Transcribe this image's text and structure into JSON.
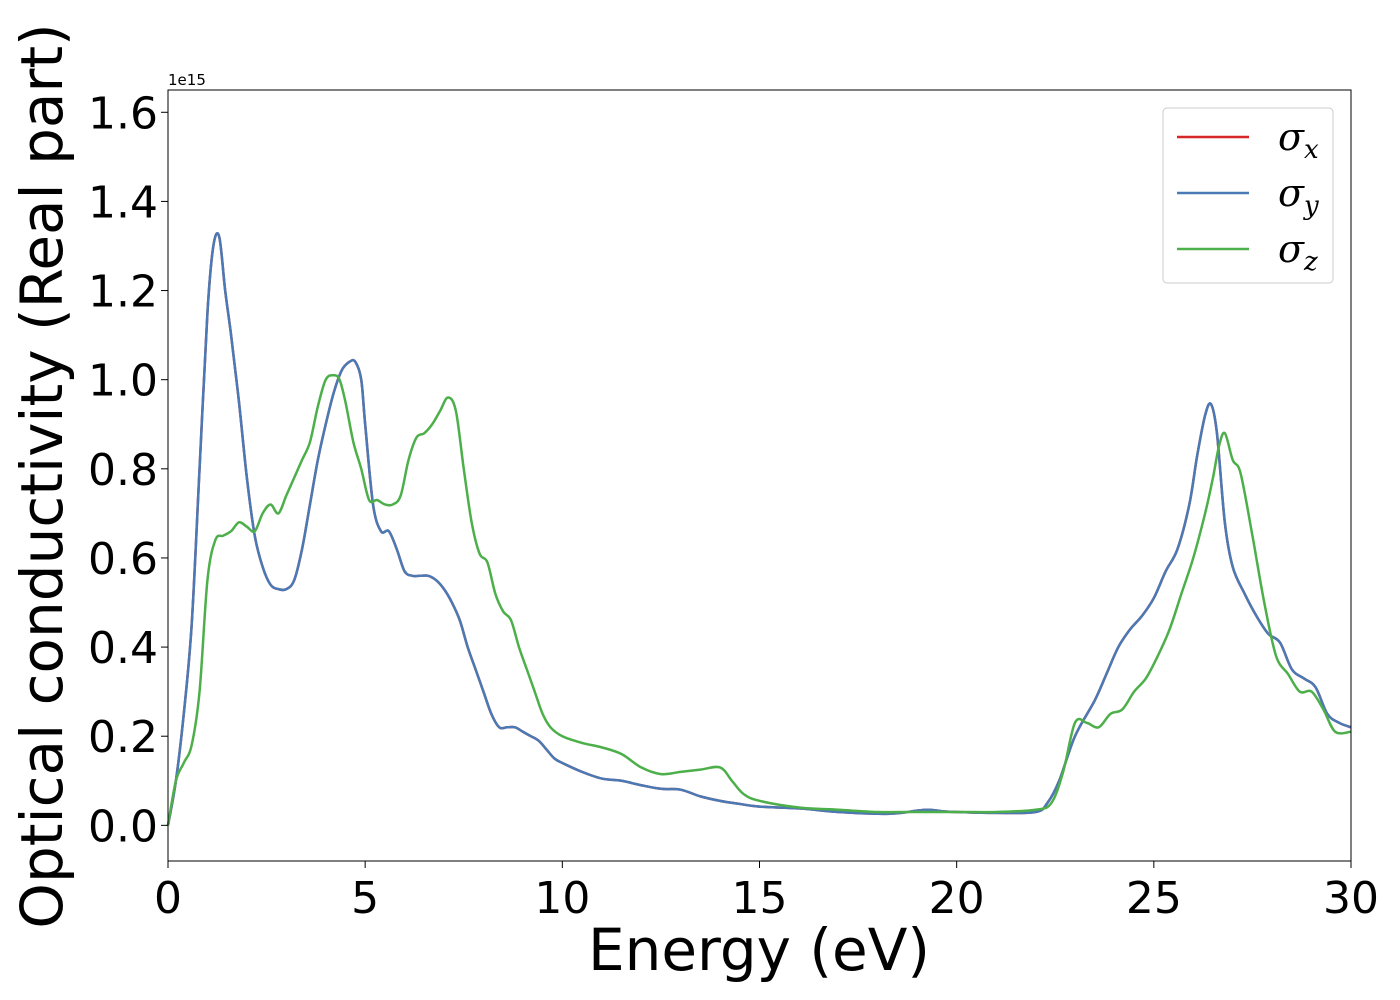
{
  "chart_data": {
    "type": "line",
    "title": "",
    "xlabel": "Energy (eV)",
    "ylabel": "Optical conductivity (Real part)",
    "y_offset_label": "1e15",
    "xlim": [
      0,
      30
    ],
    "ylim": [
      -0.08,
      1.65
    ],
    "xticks": [
      0,
      5,
      10,
      15,
      20,
      25,
      30
    ],
    "xtick_labels": [
      "0",
      "5",
      "10",
      "15",
      "20",
      "25",
      "30"
    ],
    "yticks": [
      0.0,
      0.2,
      0.4,
      0.6,
      0.8,
      1.0,
      1.2,
      1.4,
      1.6
    ],
    "ytick_labels": [
      "0.0",
      "0.2",
      "0.4",
      "0.6",
      "0.8",
      "1.0",
      "1.2",
      "1.4",
      "1.6"
    ],
    "grid": false,
    "legend_position": "top-right",
    "series": [
      {
        "name": "σx",
        "symbol": "σ",
        "subscript": "x",
        "color": "#d62728",
        "x": [
          0,
          0.2,
          0.4,
          0.6,
          0.8,
          1.0,
          1.15,
          1.3,
          1.45,
          1.6,
          1.8,
          2.0,
          2.2,
          2.4,
          2.6,
          2.8,
          3.0,
          3.2,
          3.4,
          3.6,
          3.8,
          4.0,
          4.2,
          4.4,
          4.6,
          4.75,
          4.9,
          5.0,
          5.2,
          5.4,
          5.6,
          5.8,
          6.0,
          6.2,
          6.4,
          6.6,
          6.8,
          7.0,
          7.2,
          7.4,
          7.6,
          7.8,
          8.0,
          8.2,
          8.4,
          8.6,
          8.8,
          9.0,
          9.2,
          9.4,
          9.6,
          9.8,
          10.0,
          10.5,
          11.0,
          11.5,
          12.0,
          12.5,
          13.0,
          13.5,
          14.0,
          14.5,
          15.0,
          16.0,
          17.0,
          18.0,
          18.5,
          19.0,
          19.3,
          19.6,
          20.0,
          21.0,
          22.0,
          22.3,
          22.6,
          23.0,
          23.5,
          23.8,
          24.1,
          24.4,
          24.7,
          25.0,
          25.3,
          25.6,
          25.9,
          26.1,
          26.3,
          26.45,
          26.6,
          26.8,
          27.0,
          27.3,
          27.6,
          27.9,
          28.2,
          28.5,
          28.8,
          29.1,
          29.4,
          29.7,
          30.0
        ],
        "values": [
          0.0,
          0.1,
          0.25,
          0.45,
          0.8,
          1.15,
          1.3,
          1.32,
          1.2,
          1.1,
          0.95,
          0.78,
          0.65,
          0.58,
          0.54,
          0.53,
          0.53,
          0.55,
          0.62,
          0.72,
          0.82,
          0.9,
          0.97,
          1.02,
          1.04,
          1.04,
          1.0,
          0.9,
          0.72,
          0.66,
          0.66,
          0.62,
          0.57,
          0.56,
          0.56,
          0.56,
          0.55,
          0.53,
          0.5,
          0.46,
          0.4,
          0.35,
          0.3,
          0.25,
          0.22,
          0.22,
          0.22,
          0.21,
          0.2,
          0.19,
          0.17,
          0.15,
          0.14,
          0.12,
          0.105,
          0.1,
          0.09,
          0.082,
          0.08,
          0.065,
          0.055,
          0.048,
          0.042,
          0.038,
          0.03,
          0.026,
          0.027,
          0.033,
          0.035,
          0.032,
          0.03,
          0.028,
          0.03,
          0.05,
          0.1,
          0.2,
          0.28,
          0.34,
          0.4,
          0.44,
          0.47,
          0.51,
          0.57,
          0.62,
          0.72,
          0.83,
          0.92,
          0.945,
          0.88,
          0.68,
          0.58,
          0.52,
          0.47,
          0.43,
          0.41,
          0.35,
          0.33,
          0.31,
          0.25,
          0.23,
          0.22
        ]
      },
      {
        "name": "σy",
        "symbol": "σ",
        "subscript": "y",
        "color": "#4a7ab5",
        "x": [
          0,
          0.2,
          0.4,
          0.6,
          0.8,
          1.0,
          1.15,
          1.3,
          1.45,
          1.6,
          1.8,
          2.0,
          2.2,
          2.4,
          2.6,
          2.8,
          3.0,
          3.2,
          3.4,
          3.6,
          3.8,
          4.0,
          4.2,
          4.4,
          4.6,
          4.75,
          4.9,
          5.0,
          5.2,
          5.4,
          5.6,
          5.8,
          6.0,
          6.2,
          6.4,
          6.6,
          6.8,
          7.0,
          7.2,
          7.4,
          7.6,
          7.8,
          8.0,
          8.2,
          8.4,
          8.6,
          8.8,
          9.0,
          9.2,
          9.4,
          9.6,
          9.8,
          10.0,
          10.5,
          11.0,
          11.5,
          12.0,
          12.5,
          13.0,
          13.5,
          14.0,
          14.5,
          15.0,
          16.0,
          17.0,
          18.0,
          18.5,
          19.0,
          19.3,
          19.6,
          20.0,
          21.0,
          22.0,
          22.3,
          22.6,
          23.0,
          23.5,
          23.8,
          24.1,
          24.4,
          24.7,
          25.0,
          25.3,
          25.6,
          25.9,
          26.1,
          26.3,
          26.45,
          26.6,
          26.8,
          27.0,
          27.3,
          27.6,
          27.9,
          28.2,
          28.5,
          28.8,
          29.1,
          29.4,
          29.7,
          30.0
        ],
        "values": [
          0.0,
          0.1,
          0.25,
          0.45,
          0.8,
          1.15,
          1.3,
          1.32,
          1.2,
          1.1,
          0.95,
          0.78,
          0.65,
          0.58,
          0.54,
          0.53,
          0.53,
          0.55,
          0.62,
          0.72,
          0.82,
          0.9,
          0.97,
          1.02,
          1.04,
          1.04,
          1.0,
          0.9,
          0.72,
          0.66,
          0.66,
          0.62,
          0.57,
          0.56,
          0.56,
          0.56,
          0.55,
          0.53,
          0.5,
          0.46,
          0.4,
          0.35,
          0.3,
          0.25,
          0.22,
          0.22,
          0.22,
          0.21,
          0.2,
          0.19,
          0.17,
          0.15,
          0.14,
          0.12,
          0.105,
          0.1,
          0.09,
          0.082,
          0.08,
          0.065,
          0.055,
          0.048,
          0.042,
          0.038,
          0.03,
          0.026,
          0.027,
          0.033,
          0.035,
          0.032,
          0.03,
          0.028,
          0.03,
          0.05,
          0.1,
          0.2,
          0.28,
          0.34,
          0.4,
          0.44,
          0.47,
          0.51,
          0.57,
          0.62,
          0.72,
          0.83,
          0.92,
          0.945,
          0.88,
          0.68,
          0.58,
          0.52,
          0.47,
          0.43,
          0.41,
          0.35,
          0.33,
          0.31,
          0.25,
          0.23,
          0.22
        ]
      },
      {
        "name": "σz",
        "symbol": "σ",
        "subscript": "z",
        "color": "#4daf4a",
        "x": [
          0,
          0.2,
          0.4,
          0.6,
          0.8,
          1.0,
          1.2,
          1.4,
          1.6,
          1.8,
          2.0,
          2.2,
          2.4,
          2.6,
          2.8,
          3.0,
          3.2,
          3.4,
          3.6,
          3.8,
          4.0,
          4.2,
          4.35,
          4.5,
          4.7,
          4.9,
          5.1,
          5.3,
          5.5,
          5.7,
          5.9,
          6.1,
          6.3,
          6.5,
          6.7,
          6.9,
          7.1,
          7.3,
          7.5,
          7.7,
          7.9,
          8.1,
          8.3,
          8.5,
          8.7,
          8.9,
          9.1,
          9.3,
          9.5,
          9.7,
          10.0,
          10.5,
          11.0,
          11.5,
          12.0,
          12.5,
          13.0,
          13.5,
          14.0,
          14.3,
          14.6,
          15.0,
          16.0,
          17.0,
          18.0,
          19.0,
          20.0,
          21.0,
          22.0,
          22.4,
          22.7,
          23.0,
          23.3,
          23.6,
          23.9,
          24.2,
          24.5,
          24.8,
          25.1,
          25.4,
          25.7,
          26.0,
          26.3,
          26.5,
          26.65,
          26.8,
          27.0,
          27.2,
          27.5,
          27.8,
          28.1,
          28.4,
          28.7,
          29.0,
          29.3,
          29.6,
          30.0
        ],
        "values": [
          0.0,
          0.1,
          0.14,
          0.18,
          0.3,
          0.55,
          0.64,
          0.65,
          0.66,
          0.68,
          0.67,
          0.66,
          0.7,
          0.72,
          0.7,
          0.74,
          0.78,
          0.82,
          0.86,
          0.94,
          1.0,
          1.01,
          1.0,
          0.95,
          0.86,
          0.8,
          0.73,
          0.73,
          0.72,
          0.72,
          0.74,
          0.82,
          0.87,
          0.88,
          0.9,
          0.93,
          0.96,
          0.93,
          0.8,
          0.68,
          0.61,
          0.59,
          0.52,
          0.48,
          0.46,
          0.4,
          0.35,
          0.3,
          0.25,
          0.22,
          0.2,
          0.185,
          0.175,
          0.16,
          0.13,
          0.115,
          0.12,
          0.125,
          0.13,
          0.1,
          0.07,
          0.055,
          0.04,
          0.035,
          0.03,
          0.03,
          0.03,
          0.03,
          0.035,
          0.05,
          0.12,
          0.23,
          0.23,
          0.22,
          0.25,
          0.26,
          0.3,
          0.33,
          0.38,
          0.44,
          0.52,
          0.6,
          0.7,
          0.78,
          0.85,
          0.88,
          0.82,
          0.79,
          0.65,
          0.5,
          0.38,
          0.34,
          0.3,
          0.3,
          0.26,
          0.21,
          0.21
        ]
      }
    ]
  }
}
